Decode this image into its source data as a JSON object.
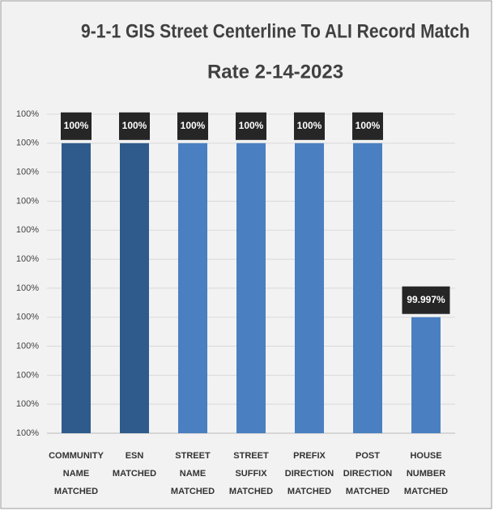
{
  "chart_data": {
    "type": "bar",
    "title": [
      "9-1-1 GIS Street Centerline To ALI Record Match",
      "Rate 2-14-2023"
    ],
    "categories": [
      [
        "COMMUNITY",
        "NAME",
        "MATCHED"
      ],
      [
        "ESN",
        "MATCHED"
      ],
      [
        "STREET",
        "NAME",
        "MATCHED"
      ],
      [
        "STREET",
        "SUFFIX",
        "MATCHED"
      ],
      [
        "PREFIX",
        "DIRECTION",
        "MATCHED"
      ],
      [
        "POST",
        "DIRECTION",
        "MATCHED"
      ],
      [
        "HOUSE",
        "NUMBER",
        "MATCHED"
      ]
    ],
    "values": [
      100,
      100,
      100,
      100,
      100,
      100,
      99.997
    ],
    "value_labels": [
      "100%",
      "100%",
      "100%",
      "100%",
      "100%",
      "100%",
      "99.997%"
    ],
    "colors": [
      "#2f5b8c",
      "#2f5b8c",
      "#4a7fc1",
      "#4a7fc1",
      "#4a7fc1",
      "#4a7fc1",
      "#4a7fc1"
    ],
    "ylim": [
      99.995,
      100.0005
    ],
    "yticks": [
      {
        "value": 99.995,
        "label": "100%"
      },
      {
        "value": 99.9955,
        "label": "100%"
      },
      {
        "value": 99.996,
        "label": "100%"
      },
      {
        "value": 99.9965,
        "label": "100%"
      },
      {
        "value": 99.997,
        "label": "100%"
      },
      {
        "value": 99.9975,
        "label": "100%"
      },
      {
        "value": 99.998,
        "label": "100%"
      },
      {
        "value": 99.9985,
        "label": "100%"
      },
      {
        "value": 99.999,
        "label": "100%"
      },
      {
        "value": 99.9995,
        "label": "100%"
      },
      {
        "value": 100,
        "label": "100%"
      },
      {
        "value": 100.0005,
        "label": "100%"
      }
    ],
    "grid": true
  }
}
